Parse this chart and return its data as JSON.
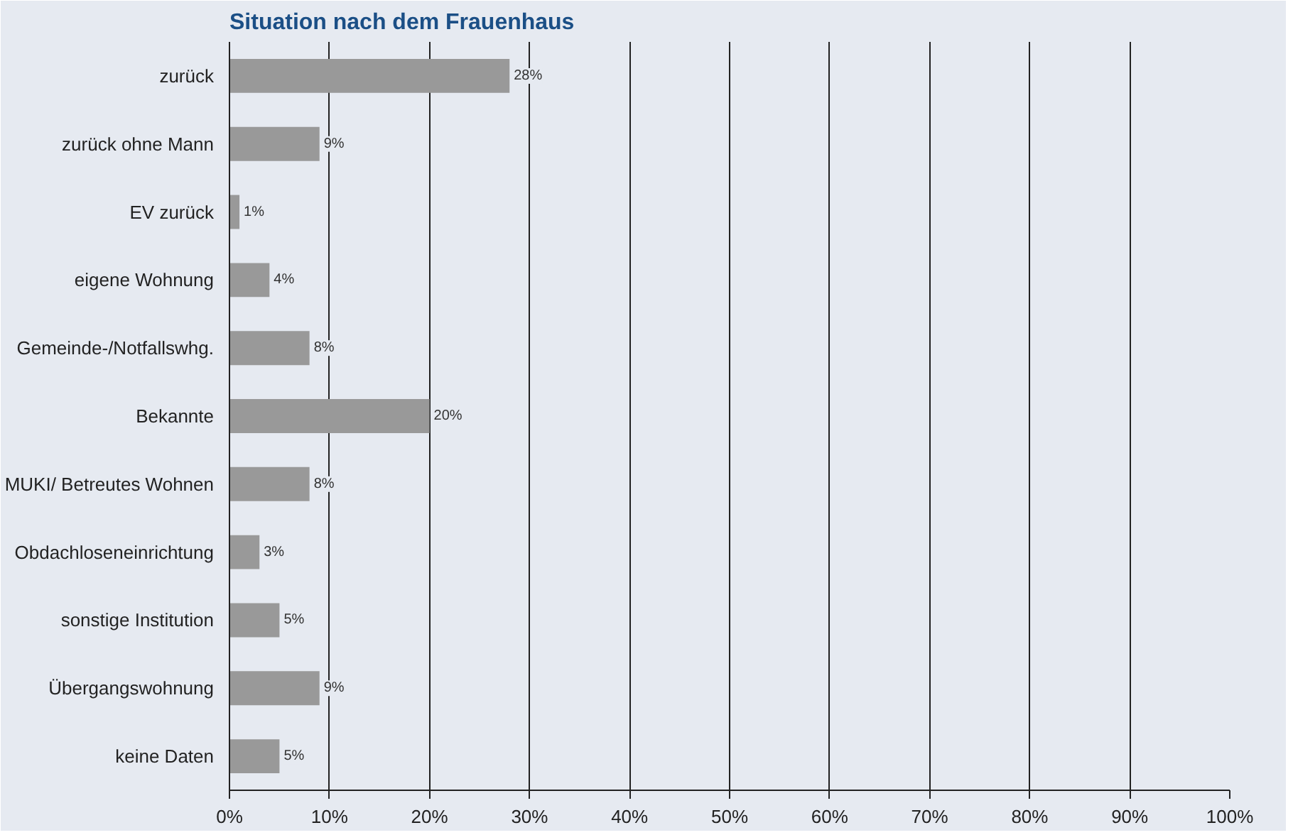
{
  "chart_data": {
    "type": "bar",
    "orientation": "horizontal",
    "title": "Situation nach dem Frauenhaus",
    "categories": [
      "zurück",
      "zurück ohne Mann",
      "EV zurück",
      "eigene Wohnung",
      "Gemeinde-/Notfallswhg.",
      "Bekannte",
      "MUKI/ Betreutes Wohnen",
      "Obdachloseneinrichtung",
      "sonstige Institution",
      "Übergangswohnung",
      "keine Daten"
    ],
    "values": [
      28,
      9,
      1,
      4,
      8,
      20,
      8,
      3,
      5,
      9,
      5
    ],
    "value_labels": [
      "28%",
      "9%",
      "1%",
      "4%",
      "8%",
      "20%",
      "8%",
      "3%",
      "5%",
      "9%",
      "5%"
    ],
    "color": "#999999",
    "xlim": [
      0,
      100
    ],
    "xticks": [
      {
        "value": 0,
        "label": "0%"
      },
      {
        "value": 10,
        "label": "10%"
      },
      {
        "value": 20,
        "label": "20%"
      },
      {
        "value": 30,
        "label": "30%"
      },
      {
        "value": 40,
        "label": "40%"
      },
      {
        "value": 50,
        "label": "50%"
      },
      {
        "value": 60,
        "label": "60%"
      },
      {
        "value": 70,
        "label": "70%"
      },
      {
        "value": 80,
        "label": "80%"
      },
      {
        "value": 90,
        "label": "90%"
      },
      {
        "value": 100,
        "label": "100%"
      }
    ],
    "grid": "x",
    "legend": false
  }
}
